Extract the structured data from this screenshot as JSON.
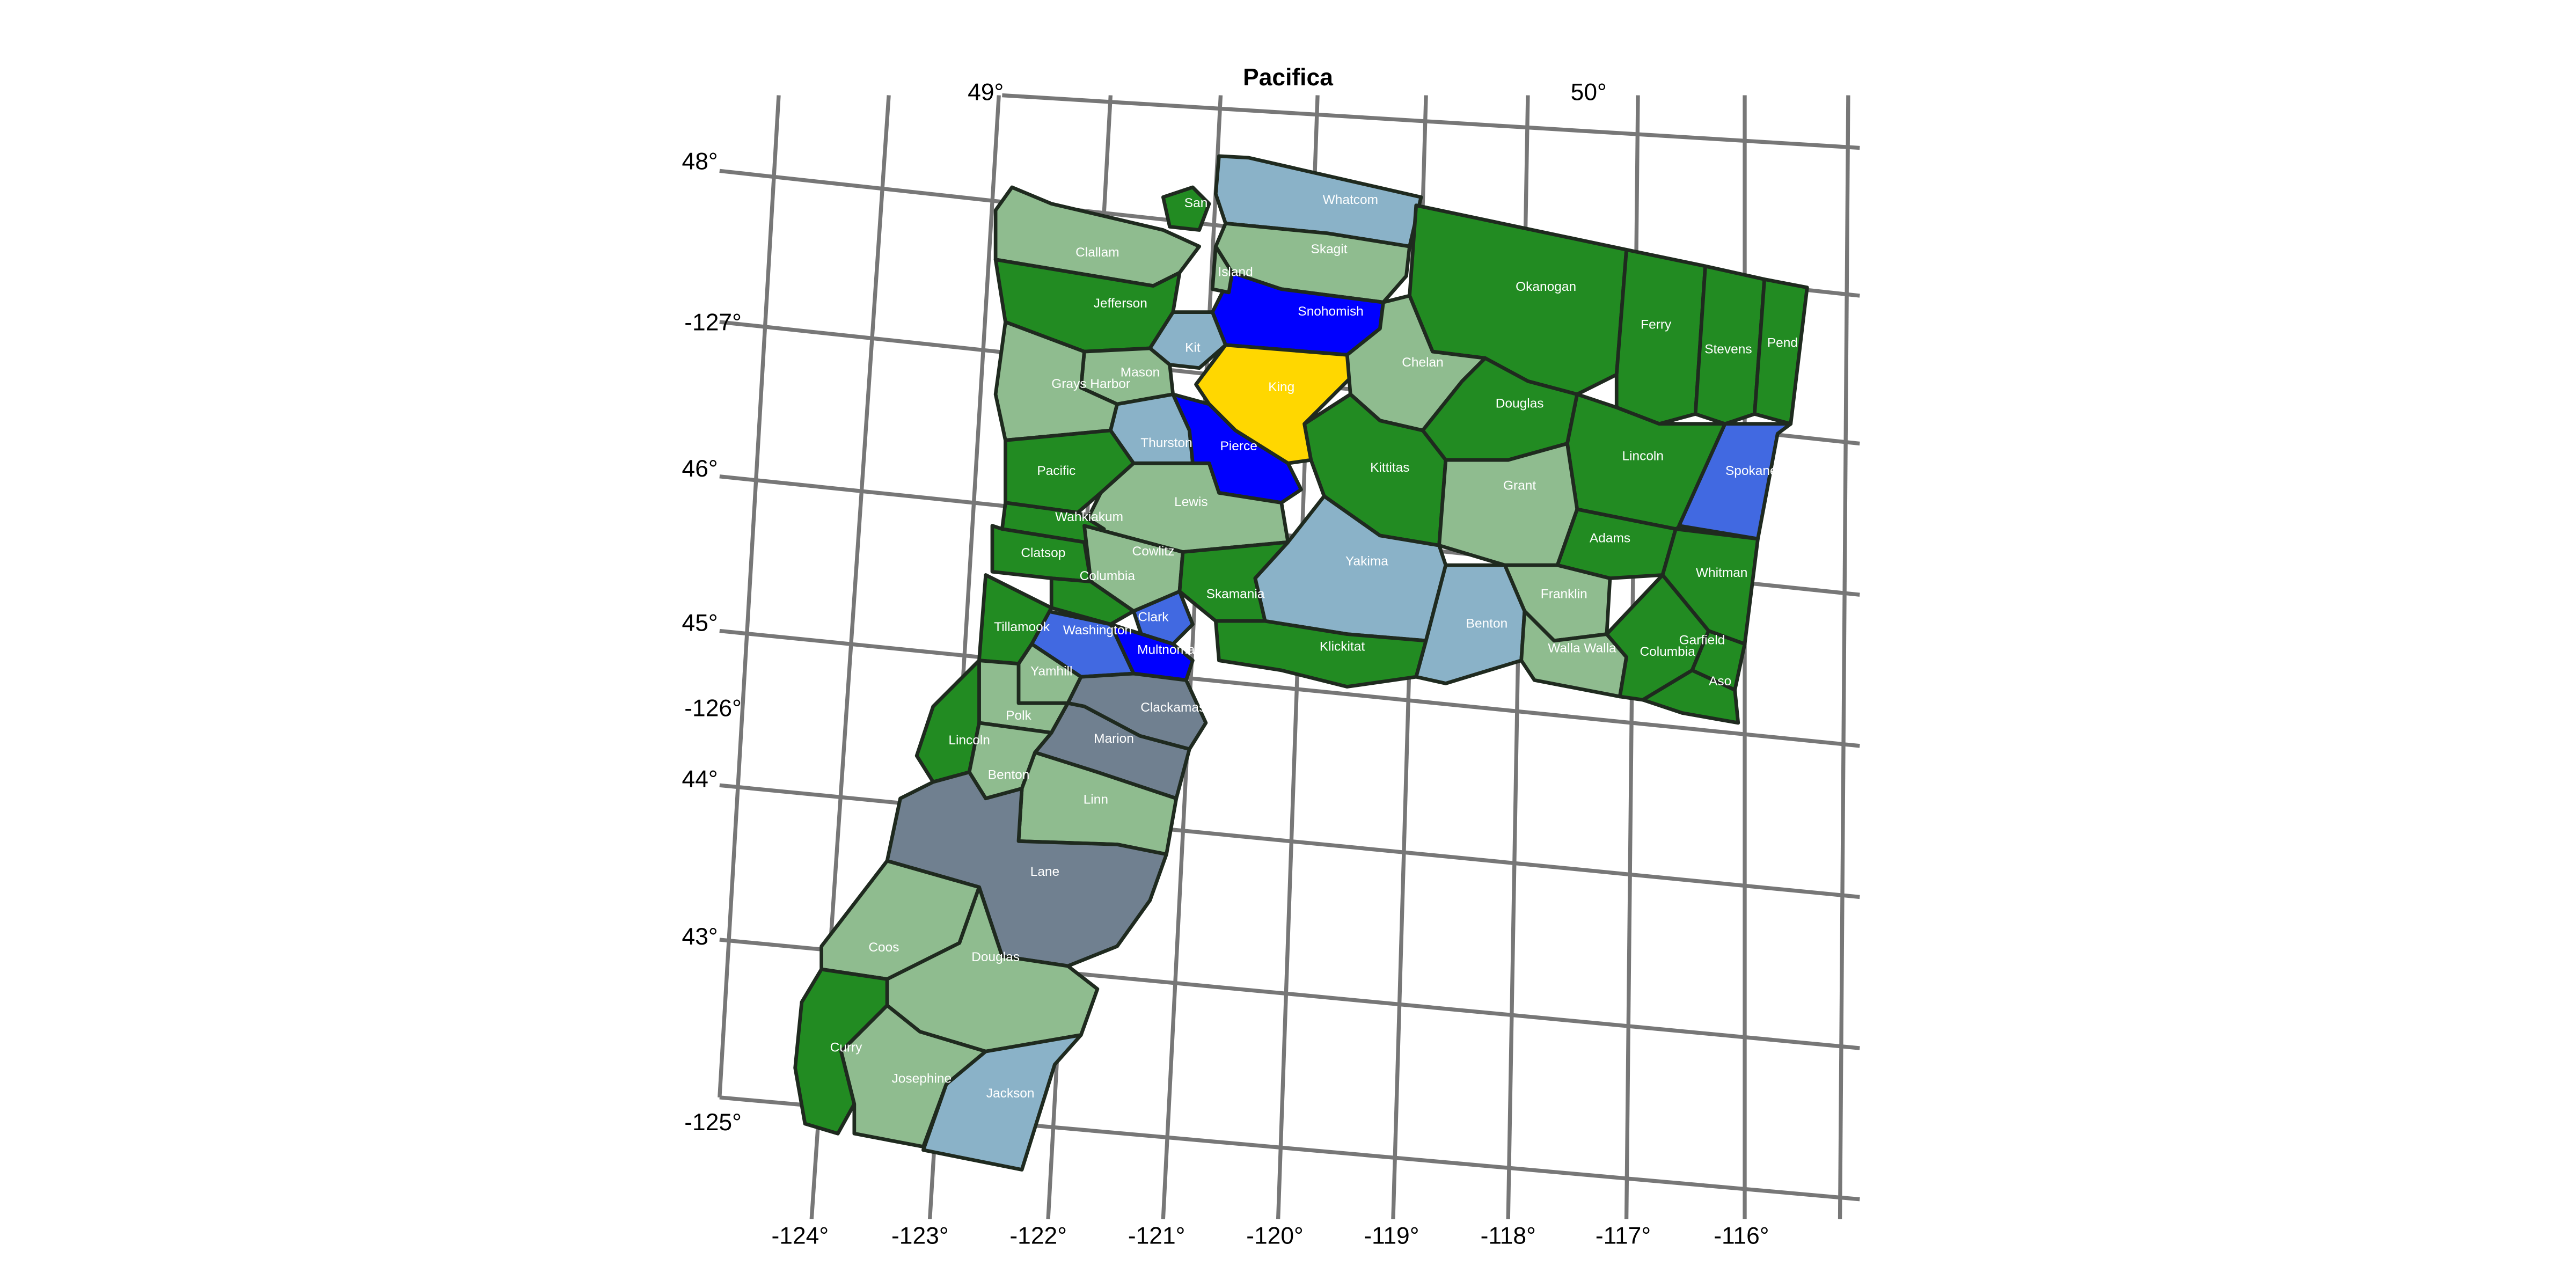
{
  "title": "Pacifica",
  "colors": {
    "forest_green": "#228b22",
    "sage_green": "#8fbc8f",
    "steel_blue_light": "#8ab2c8",
    "blue": "#0000ff",
    "royal_blue": "#4169e1",
    "slate_gray": "#708090",
    "gold": "#ffd700",
    "border": "#1f2a1f",
    "label": "#ffffff",
    "graticule": "#777777"
  },
  "axis_labels": {
    "left": [
      "48°",
      "-127°",
      "46°",
      "45°",
      "-126°",
      "44°",
      "43°",
      "-125°"
    ],
    "top": [
      "49°",
      "50°"
    ],
    "bottom": [
      "-124°",
      "-123°",
      "-122°",
      "-121°",
      "-120°",
      "-119°",
      "-118°",
      "-117°",
      "-116°"
    ]
  },
  "counties": [
    {
      "name": "Whatcom",
      "color": "steel_blue_light"
    },
    {
      "name": "Skagit",
      "color": "sage_green"
    },
    {
      "name": "Snohomish",
      "color": "blue"
    },
    {
      "name": "Island",
      "color": "sage_green",
      "label": "Island"
    },
    {
      "name": "San Juan",
      "color": "forest_green",
      "label": "San"
    },
    {
      "name": "Clallam",
      "color": "sage_green"
    },
    {
      "name": "Jefferson",
      "color": "forest_green"
    },
    {
      "name": "Kitsap",
      "color": "steel_blue_light",
      "label": "Kit"
    },
    {
      "name": "Mason",
      "color": "sage_green"
    },
    {
      "name": "King",
      "color": "gold"
    },
    {
      "name": "Grays Harbor",
      "color": "sage_green"
    },
    {
      "name": "Thurston",
      "color": "steel_blue_light"
    },
    {
      "name": "Pierce",
      "color": "blue"
    },
    {
      "name": "Okanogan",
      "color": "forest_green"
    },
    {
      "name": "Ferry",
      "color": "forest_green"
    },
    {
      "name": "Stevens",
      "color": "forest_green"
    },
    {
      "name": "Pend Oreille",
      "color": "forest_green",
      "label": "Pend"
    },
    {
      "name": "Chelan",
      "color": "sage_green"
    },
    {
      "name": "Douglas",
      "color": "forest_green"
    },
    {
      "name": "Lincoln",
      "color": "forest_green"
    },
    {
      "name": "Spokane",
      "color": "royal_blue"
    },
    {
      "name": "Pacific",
      "color": "forest_green"
    },
    {
      "name": "Lewis",
      "color": "sage_green"
    },
    {
      "name": "Kittitas",
      "color": "forest_green"
    },
    {
      "name": "Grant",
      "color": "sage_green"
    },
    {
      "name": "Adams",
      "color": "forest_green"
    },
    {
      "name": "Whitman",
      "color": "forest_green"
    },
    {
      "name": "Wahkiakum",
      "color": "forest_green"
    },
    {
      "name": "Cowlitz",
      "color": "sage_green"
    },
    {
      "name": "Clatsop",
      "color": "forest_green"
    },
    {
      "name": "Columbia (OR)",
      "color": "forest_green",
      "label": "Columbia"
    },
    {
      "name": "Yakima",
      "color": "steel_blue_light"
    },
    {
      "name": "Skamania",
      "color": "forest_green"
    },
    {
      "name": "Franklin",
      "color": "sage_green"
    },
    {
      "name": "Clark",
      "color": "royal_blue"
    },
    {
      "name": "Washington",
      "color": "royal_blue"
    },
    {
      "name": "Tillamook",
      "color": "forest_green"
    },
    {
      "name": "Multnomah",
      "color": "blue"
    },
    {
      "name": "Klickitat",
      "color": "forest_green"
    },
    {
      "name": "Benton (WA)",
      "color": "steel_blue_light",
      "label": "Benton"
    },
    {
      "name": "Walla Walla",
      "color": "sage_green"
    },
    {
      "name": "Columbia (WA)",
      "color": "forest_green",
      "label": "Columbia"
    },
    {
      "name": "Garfield",
      "color": "forest_green"
    },
    {
      "name": "Asotin",
      "color": "forest_green",
      "label": "Aso"
    },
    {
      "name": "Yamhill",
      "color": "sage_green"
    },
    {
      "name": "Clackamas",
      "color": "slate_gray"
    },
    {
      "name": "Polk",
      "color": "sage_green"
    },
    {
      "name": "Marion",
      "color": "slate_gray"
    },
    {
      "name": "Lincoln (OR)",
      "color": "forest_green",
      "label": "Lincoln"
    },
    {
      "name": "Benton (OR)",
      "color": "sage_green",
      "label": "Benton"
    },
    {
      "name": "Linn",
      "color": "sage_green"
    },
    {
      "name": "Lane",
      "color": "slate_gray"
    },
    {
      "name": "Coos",
      "color": "sage_green"
    },
    {
      "name": "Douglas (OR)",
      "color": "sage_green",
      "label": "Douglas"
    },
    {
      "name": "Curry",
      "color": "forest_green"
    },
    {
      "name": "Josephine",
      "color": "sage_green"
    },
    {
      "name": "Jackson",
      "color": "steel_blue_light"
    }
  ]
}
